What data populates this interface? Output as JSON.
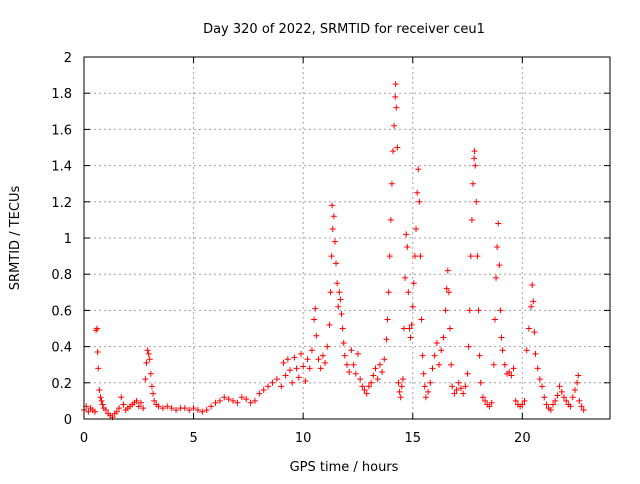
{
  "chart_data": {
    "type": "scatter",
    "title": "Day 320 of 2022, SRMTID for receiver ceu1",
    "xlabel": "GPS time / hours",
    "ylabel": "SRMTID / TECUs",
    "xlim": [
      0,
      24
    ],
    "ylim": [
      0,
      2
    ],
    "xticks": [
      0,
      5,
      10,
      15,
      20
    ],
    "yticks": [
      0,
      0.2,
      0.4,
      0.6,
      0.8,
      1,
      1.2,
      1.4,
      1.6,
      1.8,
      2
    ],
    "xtick_labels": [
      "0",
      "5",
      "10",
      "15",
      "20"
    ],
    "ytick_labels": [
      "0",
      "0.2",
      "0.4",
      "0.6",
      "0.8",
      "1",
      "1.2",
      "1.4",
      "1.6",
      "1.8",
      "2"
    ],
    "grid": true,
    "marker": "plus",
    "color": "#ff0000",
    "series": [
      {
        "name": "SRMTID",
        "points": [
          [
            0.0,
            0.05
          ],
          [
            0.1,
            0.07
          ],
          [
            0.2,
            0.04
          ],
          [
            0.3,
            0.06
          ],
          [
            0.4,
            0.05
          ],
          [
            0.5,
            0.04
          ],
          [
            0.55,
            0.49
          ],
          [
            0.6,
            0.5
          ],
          [
            0.62,
            0.37
          ],
          [
            0.65,
            0.28
          ],
          [
            0.7,
            0.16
          ],
          [
            0.75,
            0.12
          ],
          [
            0.8,
            0.1
          ],
          [
            0.85,
            0.08
          ],
          [
            0.9,
            0.06
          ],
          [
            1.0,
            0.05
          ],
          [
            1.1,
            0.03
          ],
          [
            1.2,
            0.02
          ],
          [
            1.3,
            0.01
          ],
          [
            1.4,
            0.03
          ],
          [
            1.5,
            0.04
          ],
          [
            1.6,
            0.06
          ],
          [
            1.7,
            0.12
          ],
          [
            1.8,
            0.08
          ],
          [
            1.9,
            0.05
          ],
          [
            2.0,
            0.06
          ],
          [
            2.1,
            0.07
          ],
          [
            2.2,
            0.08
          ],
          [
            2.3,
            0.09
          ],
          [
            2.4,
            0.1
          ],
          [
            2.5,
            0.07
          ],
          [
            2.6,
            0.09
          ],
          [
            2.7,
            0.06
          ],
          [
            2.8,
            0.22
          ],
          [
            2.85,
            0.31
          ],
          [
            2.9,
            0.38
          ],
          [
            2.95,
            0.36
          ],
          [
            3.0,
            0.33
          ],
          [
            3.05,
            0.25
          ],
          [
            3.1,
            0.18
          ],
          [
            3.15,
            0.14
          ],
          [
            3.2,
            0.1
          ],
          [
            3.3,
            0.08
          ],
          [
            3.4,
            0.07
          ],
          [
            3.6,
            0.06
          ],
          [
            3.8,
            0.07
          ],
          [
            4.0,
            0.06
          ],
          [
            4.2,
            0.05
          ],
          [
            4.4,
            0.06
          ],
          [
            4.6,
            0.06
          ],
          [
            4.8,
            0.05
          ],
          [
            5.0,
            0.06
          ],
          [
            5.2,
            0.05
          ],
          [
            5.4,
            0.04
          ],
          [
            5.6,
            0.05
          ],
          [
            5.8,
            0.07
          ],
          [
            6.0,
            0.09
          ],
          [
            6.2,
            0.1
          ],
          [
            6.4,
            0.12
          ],
          [
            6.6,
            0.11
          ],
          [
            6.8,
            0.1
          ],
          [
            7.0,
            0.09
          ],
          [
            7.2,
            0.12
          ],
          [
            7.4,
            0.11
          ],
          [
            7.6,
            0.09
          ],
          [
            7.8,
            0.1
          ],
          [
            8.0,
            0.14
          ],
          [
            8.2,
            0.16
          ],
          [
            8.4,
            0.18
          ],
          [
            8.6,
            0.2
          ],
          [
            8.8,
            0.22
          ],
          [
            9.0,
            0.18
          ],
          [
            9.1,
            0.31
          ],
          [
            9.2,
            0.24
          ],
          [
            9.3,
            0.33
          ],
          [
            9.4,
            0.27
          ],
          [
            9.5,
            0.2
          ],
          [
            9.6,
            0.34
          ],
          [
            9.7,
            0.28
          ],
          [
            9.8,
            0.23
          ],
          [
            9.9,
            0.36
          ],
          [
            10.0,
            0.29
          ],
          [
            10.1,
            0.21
          ],
          [
            10.2,
            0.33
          ],
          [
            10.3,
            0.28
          ],
          [
            10.4,
            0.38
          ],
          [
            10.5,
            0.55
          ],
          [
            10.55,
            0.61
          ],
          [
            10.6,
            0.46
          ],
          [
            10.7,
            0.33
          ],
          [
            10.8,
            0.28
          ],
          [
            10.9,
            0.35
          ],
          [
            11.0,
            0.31
          ],
          [
            11.1,
            0.4
          ],
          [
            11.2,
            0.52
          ],
          [
            11.25,
            0.7
          ],
          [
            11.3,
            0.9
          ],
          [
            11.32,
            1.18
          ],
          [
            11.35,
            1.05
          ],
          [
            11.4,
            1.12
          ],
          [
            11.45,
            0.98
          ],
          [
            11.5,
            0.86
          ],
          [
            11.55,
            0.75
          ],
          [
            11.6,
            0.62
          ],
          [
            11.65,
            0.7
          ],
          [
            11.7,
            0.66
          ],
          [
            11.75,
            0.58
          ],
          [
            11.8,
            0.5
          ],
          [
            11.85,
            0.42
          ],
          [
            11.9,
            0.35
          ],
          [
            12.0,
            0.3
          ],
          [
            12.1,
            0.26
          ],
          [
            12.2,
            0.38
          ],
          [
            12.3,
            0.3
          ],
          [
            12.4,
            0.25
          ],
          [
            12.5,
            0.36
          ],
          [
            12.6,
            0.22
          ],
          [
            12.7,
            0.18
          ],
          [
            12.8,
            0.16
          ],
          [
            12.9,
            0.14
          ],
          [
            13.0,
            0.18
          ],
          [
            13.1,
            0.2
          ],
          [
            13.2,
            0.24
          ],
          [
            13.3,
            0.28
          ],
          [
            13.4,
            0.22
          ],
          [
            13.5,
            0.3
          ],
          [
            13.6,
            0.26
          ],
          [
            13.7,
            0.33
          ],
          [
            13.8,
            0.44
          ],
          [
            13.85,
            0.55
          ],
          [
            13.9,
            0.7
          ],
          [
            13.95,
            0.9
          ],
          [
            14.0,
            1.1
          ],
          [
            14.05,
            1.3
          ],
          [
            14.1,
            1.48
          ],
          [
            14.15,
            1.62
          ],
          [
            14.2,
            1.78
          ],
          [
            14.22,
            1.85
          ],
          [
            14.25,
            1.72
          ],
          [
            14.3,
            1.5
          ],
          [
            14.35,
            0.2
          ],
          [
            14.4,
            0.15
          ],
          [
            14.45,
            0.12
          ],
          [
            14.5,
            0.18
          ],
          [
            14.55,
            0.22
          ],
          [
            14.6,
            0.5
          ],
          [
            14.65,
            0.78
          ],
          [
            14.7,
            1.02
          ],
          [
            14.75,
            0.95
          ],
          [
            14.8,
            0.7
          ],
          [
            14.85,
            0.5
          ],
          [
            14.9,
            0.45
          ],
          [
            14.95,
            0.52
          ],
          [
            15.0,
            0.62
          ],
          [
            15.05,
            0.75
          ],
          [
            15.1,
            0.9
          ],
          [
            15.15,
            1.05
          ],
          [
            15.2,
            1.25
          ],
          [
            15.25,
            1.38
          ],
          [
            15.3,
            1.2
          ],
          [
            15.35,
            0.9
          ],
          [
            15.4,
            0.55
          ],
          [
            15.45,
            0.35
          ],
          [
            15.5,
            0.25
          ],
          [
            15.55,
            0.18
          ],
          [
            15.6,
            0.12
          ],
          [
            15.7,
            0.15
          ],
          [
            15.8,
            0.2
          ],
          [
            15.9,
            0.28
          ],
          [
            16.0,
            0.35
          ],
          [
            16.1,
            0.42
          ],
          [
            16.2,
            0.3
          ],
          [
            16.3,
            0.38
          ],
          [
            16.4,
            0.45
          ],
          [
            16.5,
            0.6
          ],
          [
            16.55,
            0.72
          ],
          [
            16.6,
            0.82
          ],
          [
            16.65,
            0.7
          ],
          [
            16.7,
            0.5
          ],
          [
            16.75,
            0.3
          ],
          [
            16.8,
            0.18
          ],
          [
            16.9,
            0.14
          ],
          [
            17.0,
            0.16
          ],
          [
            17.1,
            0.2
          ],
          [
            17.2,
            0.17
          ],
          [
            17.3,
            0.14
          ],
          [
            17.4,
            0.18
          ],
          [
            17.5,
            0.25
          ],
          [
            17.55,
            0.4
          ],
          [
            17.6,
            0.6
          ],
          [
            17.65,
            0.9
          ],
          [
            17.7,
            1.1
          ],
          [
            17.75,
            1.3
          ],
          [
            17.8,
            1.44
          ],
          [
            17.82,
            1.48
          ],
          [
            17.85,
            1.4
          ],
          [
            17.9,
            1.2
          ],
          [
            17.95,
            0.9
          ],
          [
            18.0,
            0.6
          ],
          [
            18.05,
            0.35
          ],
          [
            18.1,
            0.2
          ],
          [
            18.2,
            0.12
          ],
          [
            18.3,
            0.1
          ],
          [
            18.4,
            0.08
          ],
          [
            18.5,
            0.07
          ],
          [
            18.6,
            0.09
          ],
          [
            18.7,
            0.3
          ],
          [
            18.75,
            0.55
          ],
          [
            18.8,
            0.78
          ],
          [
            18.85,
            0.95
          ],
          [
            18.9,
            1.08
          ],
          [
            18.95,
            0.85
          ],
          [
            19.0,
            0.6
          ],
          [
            19.05,
            0.45
          ],
          [
            19.1,
            0.38
          ],
          [
            19.2,
            0.3
          ],
          [
            19.3,
            0.25
          ],
          [
            19.4,
            0.26
          ],
          [
            19.5,
            0.24
          ],
          [
            19.6,
            0.28
          ],
          [
            19.7,
            0.1
          ],
          [
            19.8,
            0.08
          ],
          [
            19.9,
            0.07
          ],
          [
            20.0,
            0.08
          ],
          [
            20.1,
            0.1
          ],
          [
            20.2,
            0.38
          ],
          [
            20.3,
            0.5
          ],
          [
            20.4,
            0.62
          ],
          [
            20.45,
            0.74
          ],
          [
            20.5,
            0.65
          ],
          [
            20.55,
            0.48
          ],
          [
            20.6,
            0.36
          ],
          [
            20.7,
            0.28
          ],
          [
            20.8,
            0.22
          ],
          [
            20.9,
            0.18
          ],
          [
            21.0,
            0.12
          ],
          [
            21.1,
            0.08
          ],
          [
            21.2,
            0.06
          ],
          [
            21.3,
            0.05
          ],
          [
            21.4,
            0.08
          ],
          [
            21.5,
            0.1
          ],
          [
            21.6,
            0.13
          ],
          [
            21.7,
            0.18
          ],
          [
            21.8,
            0.15
          ],
          [
            21.9,
            0.12
          ],
          [
            22.0,
            0.1
          ],
          [
            22.1,
            0.08
          ],
          [
            22.2,
            0.07
          ],
          [
            22.3,
            0.12
          ],
          [
            22.4,
            0.16
          ],
          [
            22.5,
            0.2
          ],
          [
            22.55,
            0.24
          ],
          [
            22.6,
            0.1
          ],
          [
            22.7,
            0.07
          ],
          [
            22.8,
            0.05
          ]
        ]
      }
    ]
  }
}
